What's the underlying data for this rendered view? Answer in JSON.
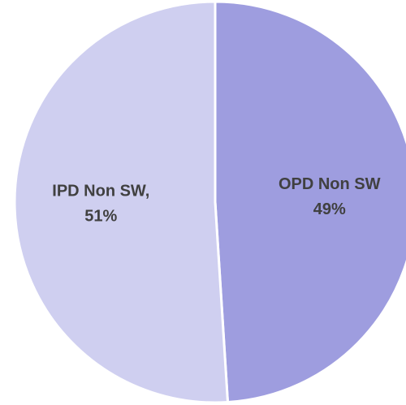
{
  "chart_data": {
    "type": "pie",
    "categories": [
      "OPD Non SW",
      "IPD Non SW,"
    ],
    "values": [
      49,
      51
    ],
    "value_labels": [
      "49%",
      "51%"
    ],
    "colors": [
      "#9e9ddf",
      "#cfcff0"
    ]
  }
}
